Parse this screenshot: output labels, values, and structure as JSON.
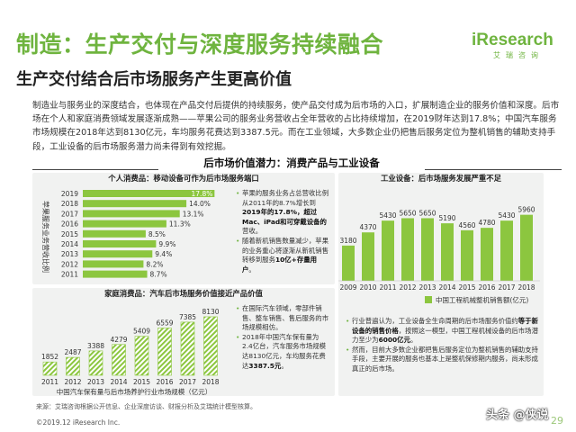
{
  "header": {
    "title": "制造：生产交付与深度服务持续融合",
    "subtitle": "生产交付结合后市场服务产生更高价值",
    "logo_main": "iResearch",
    "logo_sub": "艾瑞咨询"
  },
  "intro": {
    "text": "制造业与服务业的深度结合，也体现在产品交付后提供的持续服务，使产品交付成为后市场的入口，扩展制造企业的服务价值和深度。后市场在个人和家庭消费领域发展逐渐成熟——苹果公司的服务业务营收占全年营收的占比持续增加，在2019财年达到17.8%；中国汽车服务市场规模在2018年达到8130亿元，车均服务花费达到3387.5元。而在工业领域，大多数企业仍把售后服务定位为整机销售的辅助支持手段，工业设备的后市场服务潜力尚未得到有效挖掘。"
  },
  "section": {
    "title": "后市场价值潜力：消费产品与工业设备"
  },
  "panels": {
    "apple": {
      "head": "个人消费品：移动设备可作为后市场服务端口",
      "notes": [
        {
          "pre": "苹果的服务业务占总营收比例从2011年的8.7%增长到",
          "bold": "2019年的17.8%，超过Mac、iPad和可穿戴设备的",
          "post": "营收。"
        },
        {
          "pre": "随着新机销售数量减少，苹果的业务重心将逐渐从新机销售转移到服务",
          "bold": "10亿+存量用户",
          "post": "。"
        }
      ]
    },
    "industrial": {
      "head": "工业设备：后市场服务发展严重不足",
      "notes": [
        {
          "pre": "行业普遍认为，工业设备全生命周期的后市场服务价值约",
          "bold": "等于新设备的销售价格",
          "post": "，按照这一模型，中国工程机械设备的后市场潜力至少为",
          "bold2": "6000亿元",
          "post2": "。"
        },
        {
          "pre": "然而，目前大多数企业都把售后服务定位为整机销售的辅助支持手段，主要开展的服务也基本上是整机保修期内服务，尚未形成真正的后市场。",
          "bold": "",
          "post": ""
        }
      ]
    },
    "car": {
      "head": "家庭消费品：汽车后市场服务价值接近产品价值",
      "notes": [
        {
          "pre": "在国际汽车领域，零部件销售、整车销售、售后服务的市场规模相仿。",
          "bold": "",
          "post": ""
        },
        {
          "pre": "2018年中国汽车保有量为2.4亿台，汽车服务市场规模达8130亿元，车均服务花费达",
          "bold": "3387.5元",
          "post": "。"
        }
      ]
    }
  },
  "chart_data": [
    {
      "type": "bar",
      "orientation": "horizontal",
      "ylabel": "苹果服务业务营收比例",
      "categories": [
        "2019",
        "2018",
        "2017",
        "2016",
        "2015",
        "2014",
        "2013",
        "2012",
        "2011"
      ],
      "values": [
        17.8,
        14.0,
        13.1,
        11.3,
        8.5,
        9.9,
        9.4,
        8.2,
        8.7
      ],
      "value_labels": [
        "17.8%",
        "14.0%",
        "13.1%",
        "11.3%",
        "8.5%",
        "9.9%",
        "9.4%",
        "8.2%",
        "8.7%"
      ],
      "xlim": [
        0,
        18
      ]
    },
    {
      "type": "bar",
      "title": "中国工程机械整机销售额(亿元)",
      "categories": [
        "2009",
        "2010",
        "2011",
        "2012",
        "2013",
        "2014",
        "2015",
        "2016",
        "2017",
        "2018"
      ],
      "values": [
        3180,
        4370,
        5430,
        5650,
        5650,
        5190,
        4560,
        4780,
        5430,
        5960
      ],
      "ylim": [
        0,
        6500
      ]
    },
    {
      "type": "bar",
      "title": "中国汽车保有量与后市场养护行业市场规模（亿元）",
      "categories": [
        "2011",
        "2012",
        "2013",
        "2014",
        "2015",
        "2016",
        "2017",
        "2018"
      ],
      "values": [
        1852,
        2487,
        3388,
        4279,
        5409,
        6559,
        7385,
        8130
      ],
      "ylim": [
        0,
        9000
      ]
    }
  ],
  "footer": {
    "source": "来源：艾瑞咨询根据公开信息、企业深度访谈、财报分析及艾瑞统计模型核算。",
    "copyright": "©2019.12 iResearch Inc.",
    "page": "29",
    "watermark": "头条 @侠说"
  },
  "colors": {
    "accent": "#6fb43f",
    "bar": "#8cc63f",
    "panel": "#f1f2f1"
  }
}
